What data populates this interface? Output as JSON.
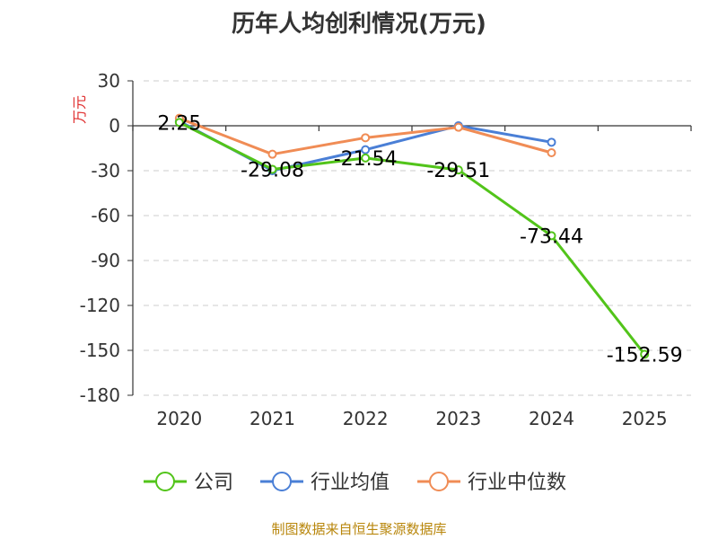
{
  "chart_data": {
    "type": "line",
    "title": "历年人均创利情况(万元)",
    "ylabel": "万元",
    "xlabel": "",
    "categories": [
      "2020",
      "2021",
      "2022",
      "2023",
      "2024",
      "2025"
    ],
    "ylim": [
      -180,
      30
    ],
    "yticks": [
      30,
      0,
      -30,
      -60,
      -90,
      -120,
      -150,
      -180
    ],
    "grid": true,
    "series": [
      {
        "name": "公司",
        "color": "#52c41a",
        "values": [
          2.25,
          -29.08,
          -21.54,
          -29.51,
          -73.44,
          -152.59
        ],
        "labels": [
          "2.25",
          "-29.08",
          "-21.54",
          "-29.51",
          "-73.44",
          "-152.59"
        ]
      },
      {
        "name": "行业均值",
        "color": "#4a7fd6",
        "values": [
          3,
          -30,
          -16,
          0,
          -11,
          null
        ]
      },
      {
        "name": "行业中位数",
        "color": "#f08c55",
        "values": [
          5,
          -19,
          -8,
          -1,
          -18,
          null
        ]
      }
    ],
    "legend_position": "bottom"
  },
  "footer": "制图数据来自恒生聚源数据库"
}
